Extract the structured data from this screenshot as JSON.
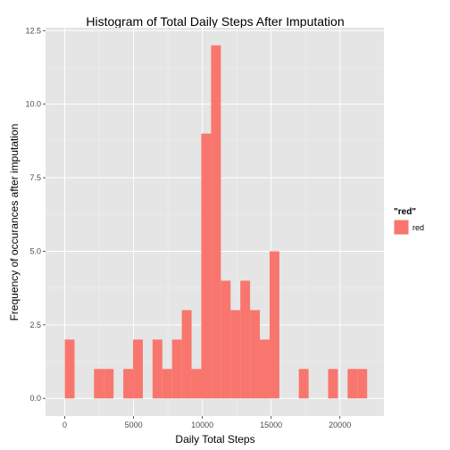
{
  "chart_data": {
    "type": "bar",
    "title": "Histogram of Total Daily Steps After Imputation",
    "xlabel": "Daily Total Steps",
    "ylabel": "Frequency of occurances after imputation",
    "xlim": [
      -1400,
      23200
    ],
    "ylim": [
      -0.6,
      12.6
    ],
    "x_ticks": [
      0,
      5000,
      10000,
      15000,
      20000
    ],
    "x_tick_labels": [
      "0",
      "5000",
      "10000",
      "15000",
      "20000"
    ],
    "y_ticks": [
      0,
      2.5,
      5,
      7.5,
      10,
      12.5
    ],
    "y_tick_labels": [
      "0.0",
      "2.5",
      "5.0",
      "7.5",
      "10.0",
      "12.5"
    ],
    "bin_width": 709,
    "bins": [
      {
        "x0": 0,
        "count": 2
      },
      {
        "x0": 709,
        "count": 0
      },
      {
        "x0": 1418,
        "count": 0
      },
      {
        "x0": 2127,
        "count": 1
      },
      {
        "x0": 2836,
        "count": 1
      },
      {
        "x0": 3545,
        "count": 0
      },
      {
        "x0": 4254,
        "count": 1
      },
      {
        "x0": 4963,
        "count": 2
      },
      {
        "x0": 5672,
        "count": 0
      },
      {
        "x0": 6381,
        "count": 2
      },
      {
        "x0": 7090,
        "count": 1
      },
      {
        "x0": 7799,
        "count": 2
      },
      {
        "x0": 8508,
        "count": 3
      },
      {
        "x0": 9217,
        "count": 1
      },
      {
        "x0": 9926,
        "count": 9
      },
      {
        "x0": 10635,
        "count": 12
      },
      {
        "x0": 11344,
        "count": 4
      },
      {
        "x0": 12053,
        "count": 3
      },
      {
        "x0": 12762,
        "count": 4
      },
      {
        "x0": 13471,
        "count": 3
      },
      {
        "x0": 14180,
        "count": 2
      },
      {
        "x0": 14889,
        "count": 5
      },
      {
        "x0": 15598,
        "count": 0
      },
      {
        "x0": 16307,
        "count": 0
      },
      {
        "x0": 17016,
        "count": 1
      },
      {
        "x0": 17725,
        "count": 0
      },
      {
        "x0": 18434,
        "count": 0
      },
      {
        "x0": 19143,
        "count": 1
      },
      {
        "x0": 19852,
        "count": 0
      },
      {
        "x0": 20561,
        "count": 1
      },
      {
        "x0": 21270,
        "count": 1
      }
    ],
    "grid": true,
    "legend": {
      "title": "\"red\"",
      "items": [
        {
          "label": "red",
          "color": "#F8766D"
        }
      ],
      "position": "right"
    },
    "colors": {
      "bar": "#F8766D",
      "panel": "#E5E5E5",
      "grid_major": "#FFFFFF",
      "grid_minor": "#F2F2F2"
    }
  }
}
